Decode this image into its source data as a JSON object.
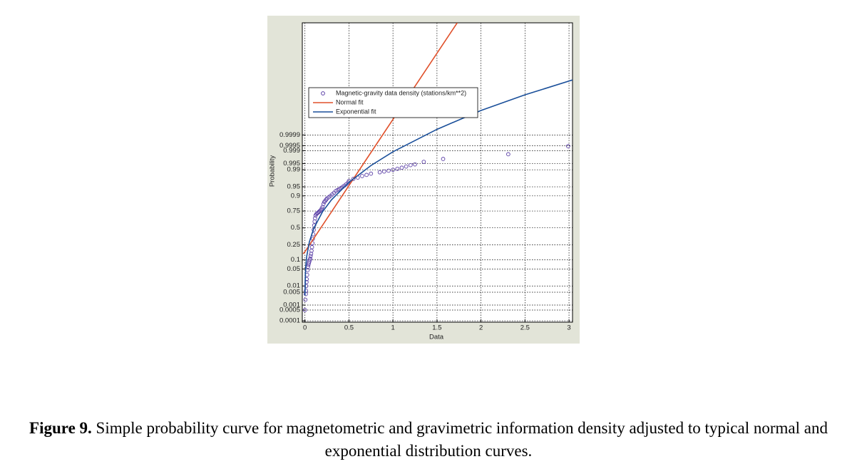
{
  "chart_data": {
    "type": "scatter",
    "xlabel": "Data",
    "ylabel": "Probability",
    "yscale": "normal-probability",
    "xlim": [
      -0.03,
      3.04
    ],
    "ylim": [
      8e-05,
      0.9999999999999999
    ],
    "xticks": [
      0,
      0.5,
      1,
      1.5,
      2,
      2.5,
      3
    ],
    "yticks": [
      0.0001,
      0.0005,
      0.001,
      0.005,
      0.01,
      0.05,
      0.1,
      0.25,
      0.5,
      0.75,
      0.9,
      0.95,
      0.99,
      0.995,
      0.999,
      0.9995,
      0.9999
    ],
    "grid": true,
    "legend": "upper left",
    "series": [
      {
        "name": "Magnetic-gravity data density (stations/km**2)",
        "type": "scatter",
        "color": "#5a3ea6",
        "x": [
          0,
          0.005,
          0.01,
          0.012,
          0.015,
          0.018,
          0.02,
          0.025,
          0.03,
          0.035,
          0.04,
          0.045,
          0.05,
          0.055,
          0.06,
          0.065,
          0.07,
          0.075,
          0.08,
          0.085,
          0.09,
          0.095,
          0.1,
          0.105,
          0.11,
          0.115,
          0.12,
          0.13,
          0.14,
          0.15,
          0.16,
          0.17,
          0.18,
          0.19,
          0.2,
          0.21,
          0.22,
          0.23,
          0.24,
          0.25,
          0.27,
          0.29,
          0.31,
          0.33,
          0.35,
          0.37,
          0.39,
          0.41,
          0.43,
          0.45,
          0.47,
          0.49,
          0.5,
          0.55,
          0.6,
          0.65,
          0.7,
          0.75,
          0.85,
          0.9,
          0.95,
          1,
          1.05,
          1.1,
          1.15,
          1.2,
          1.25,
          1.35,
          1.57,
          2.31,
          2.99
        ],
        "values": [
          0.0005,
          0.002,
          0.004,
          0.006,
          0.01,
          0.015,
          0.02,
          0.03,
          0.045,
          0.06,
          0.07,
          0.08,
          0.09,
          0.1,
          0.11,
          0.13,
          0.15,
          0.18,
          0.22,
          0.27,
          0.33,
          0.4,
          0.47,
          0.54,
          0.6,
          0.65,
          0.69,
          0.71,
          0.72,
          0.73,
          0.74,
          0.75,
          0.76,
          0.78,
          0.8,
          0.83,
          0.85,
          0.86,
          0.87,
          0.88,
          0.89,
          0.9,
          0.91,
          0.92,
          0.93,
          0.935,
          0.94,
          0.945,
          0.95,
          0.955,
          0.96,
          0.965,
          0.97,
          0.975,
          0.978,
          0.981,
          0.983,
          0.985,
          0.987,
          0.988,
          0.989,
          0.99,
          0.991,
          0.992,
          0.993,
          0.994,
          0.9945,
          0.9959,
          0.9971,
          0.9984,
          0.99946
        ]
      },
      {
        "name": "Normal fit",
        "type": "line",
        "color": "#e0502a",
        "x": [
          -0.02,
          0,
          0.5,
          1.73
        ],
        "values": [
          0.15,
          0.17,
          0.955,
          0.9999999999999999
        ]
      },
      {
        "name": "Exponential fit",
        "type": "line",
        "color": "#1a4f9a",
        "x": [
          0.0005,
          0.005,
          0.01,
          0.02,
          0.05,
          0.1,
          0.2,
          0.3,
          0.5,
          0.75,
          1,
          1.5,
          2,
          2.5,
          3.04
        ],
        "values": [
          0.00337,
          0.0332,
          0.0654,
          0.1264,
          0.2867,
          0.4912,
          0.7411,
          0.8683,
          0.9659,
          0.99371,
          0.99884,
          0.99996,
          0.9999987,
          0.99999995,
          0.9999999984
        ]
      }
    ]
  },
  "caption": {
    "label": "Figure 9.",
    "text": "Simple probability curve for magnetometric and gravimetric information density adjusted to typical normal and exponential distribution curves."
  }
}
